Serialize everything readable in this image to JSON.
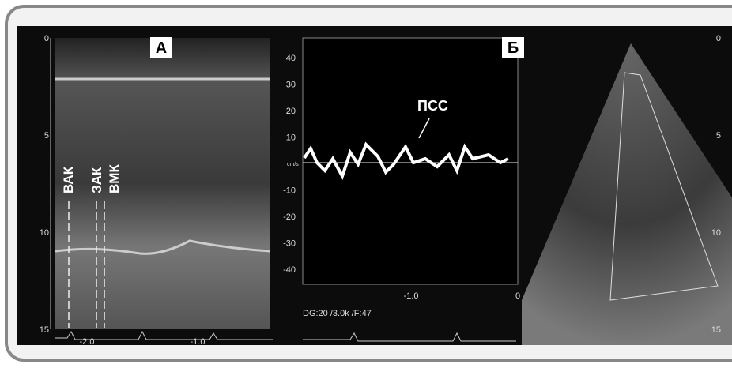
{
  "panel_a": {
    "label": "А",
    "depth_ticks": [
      "0",
      "5",
      "10",
      "15"
    ],
    "annotations": [
      "ВАК",
      "ЗАК",
      "ВМК"
    ],
    "time_ticks": [
      "-2.0",
      "-1.0"
    ]
  },
  "panel_b": {
    "label": "Б",
    "velocity_ticks": [
      "40",
      "30",
      "20",
      "10",
      "-10",
      "-20",
      "-30",
      "-40"
    ],
    "unit": "cm/s",
    "annotation": "ПСС",
    "time_ticks": [
      "-1.0",
      "0"
    ],
    "settings": "DG:20  /3.0k   /F:47"
  },
  "panel_c": {
    "depth_ticks": [
      "0",
      "5",
      "10",
      "15"
    ]
  }
}
